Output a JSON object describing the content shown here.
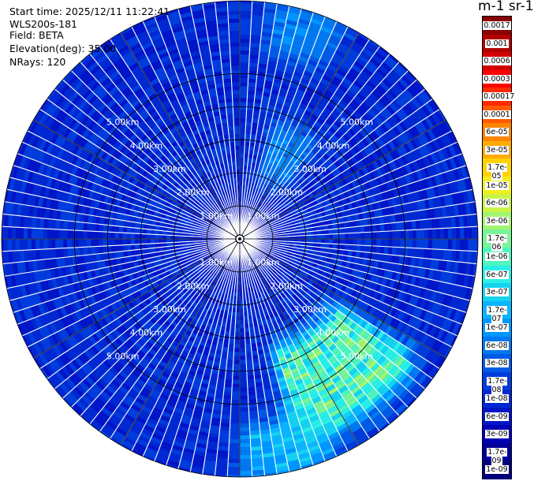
{
  "info": {
    "start_time": "Start time: 2025/12/11 11:22:41",
    "instrument": "WLS200s-181",
    "field": "Field: BETA",
    "elevation": "Elevation(deg): 35.00",
    "nrays": "NRays: 120"
  },
  "colorbar": {
    "title": "m-1 sr-1",
    "labels": [
      "0.0017",
      "0.001",
      "0.0006",
      "0.0003",
      "0.00017",
      "0.0001",
      "6e-05",
      "3e-05",
      "1.7e-05",
      "1e-05",
      "6e-06",
      "3e-06",
      "1.7e-06",
      "1e-06",
      "6e-07",
      "3e-07",
      "1.7e-07",
      "1e-07",
      "6e-08",
      "3e-08",
      "1.7e-08",
      "1e-08",
      "6e-09",
      "3e-09",
      "1.7e-09",
      "1e-09"
    ],
    "colors": [
      "#8b0000",
      "#b00000",
      "#d40000",
      "#ff0000",
      "#ff2a00",
      "#ff5a00",
      "#ff8400",
      "#ffaa00",
      "#ffd200",
      "#f2ee1e",
      "#c8f546",
      "#a0f56e",
      "#78f596",
      "#4ef5be",
      "#28f0e6",
      "#14d2f0",
      "#0ab4ff",
      "#0096ff",
      "#0078f0",
      "#005ae6",
      "#003cdc",
      "#0028d2",
      "#0014c8",
      "#0000b4",
      "#000096",
      "#00007a"
    ]
  },
  "chart_data": {
    "type": "heatmap",
    "projection": "polar (PPI)",
    "field": "BETA",
    "elevation_deg": 35.0,
    "n_rays": 120,
    "range_rings_km": [
      1,
      2,
      3,
      4,
      5
    ],
    "range_labels": [
      "1.00km",
      "2.00km",
      "3.00km",
      "4.00km",
      "5.00km"
    ],
    "max_range_km": 7.2,
    "color_scale": "log",
    "value_range": [
      1e-09,
      0.0017
    ],
    "typical_background_value": 1e-08,
    "near_range_value": 3e-09,
    "features": [
      {
        "azimuth_deg_range": [
          128,
          160
        ],
        "range_km": [
          3.4,
          6.6
        ],
        "peak_value": 3e-06
      },
      {
        "azimuth_deg_range": [
          20,
          36
        ],
        "range_km": [
          2.2,
          3.4
        ],
        "peak_value": 1e-07
      },
      {
        "azimuth_deg_range": [
          12,
          22
        ],
        "range_km": [
          6.0,
          7.2
        ],
        "peak_value": 1e-07
      },
      {
        "azimuth_deg_range": [
          160,
          175
        ],
        "range_km": [
          5.8,
          7.2
        ],
        "peak_value": 3e-07
      }
    ]
  }
}
